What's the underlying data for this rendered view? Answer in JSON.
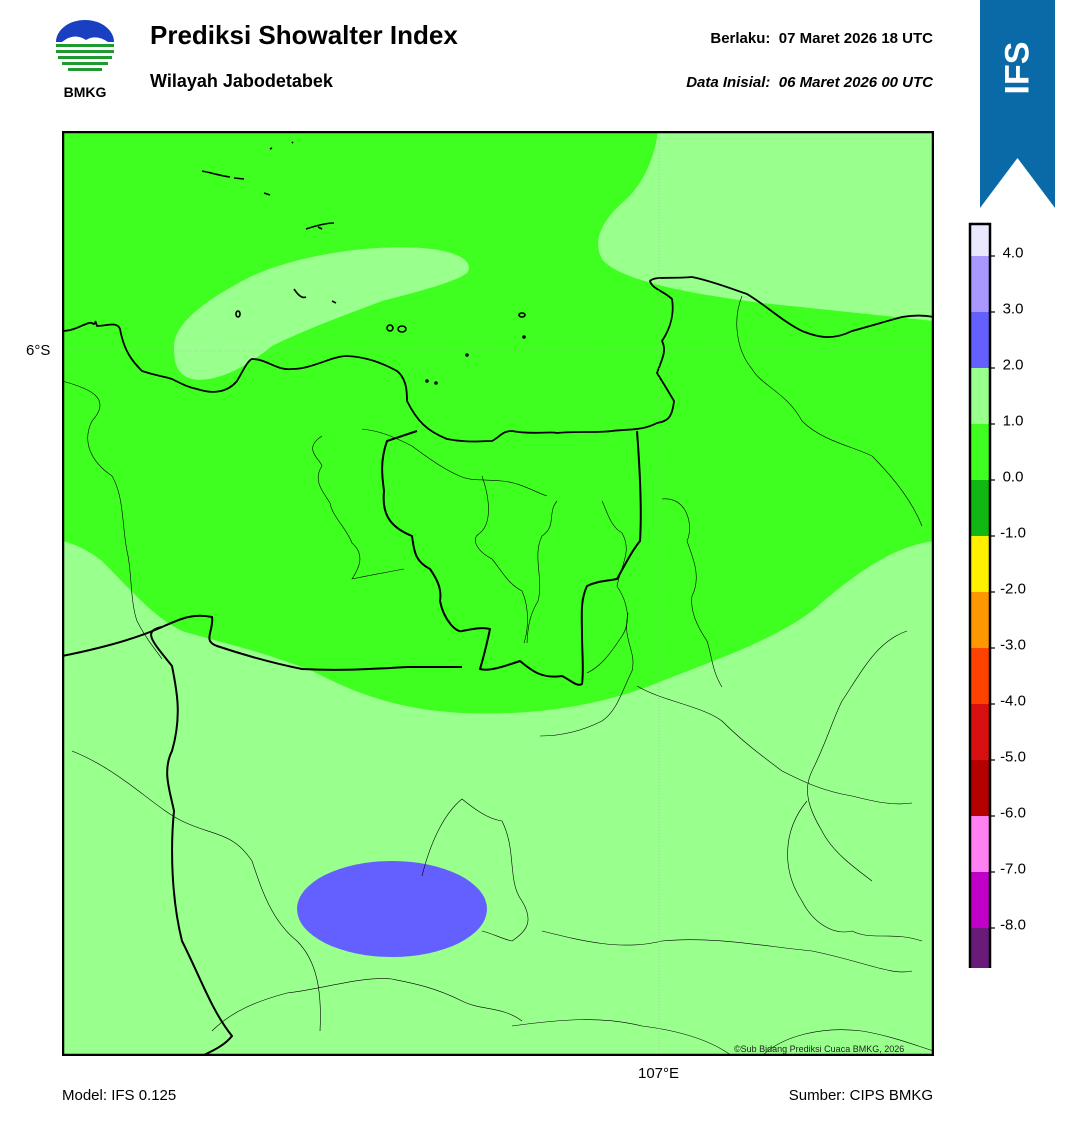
{
  "header": {
    "logo_text": "BMKG",
    "title": "Prediksi Showalter Index",
    "subtitle": "Wilayah Jabodetabek",
    "valid_label": "Berlaku:",
    "valid_time": "07 Maret 2026 18 UTC",
    "init_label": "Data Inisial:",
    "init_time": "06 Maret 2026 00 UTC",
    "ribbon_text": "IFS",
    "ribbon_color": "#0a6aa8"
  },
  "map": {
    "lat_label": "6°S",
    "lon_label": "107°E",
    "copyright": "©Sub Bidang Prediksi Cuaca BMKG, 2026",
    "colors": {
      "light_green": "#99ff8d",
      "bright_green": "#3fff20",
      "purple_blue": "#6460ff"
    }
  },
  "colorbar": {
    "levels": [
      {
        "label": "4.0",
        "color": "#e8e8ff"
      },
      {
        "label": "3.0",
        "color": "#a898ff"
      },
      {
        "label": "2.0",
        "color": "#6460ff"
      },
      {
        "label": "1.0",
        "color": "#99ff8d"
      },
      {
        "label": "0.0",
        "color": "#3fff20"
      },
      {
        "label": "-1.0",
        "color": "#11b811"
      },
      {
        "label": "-2.0",
        "color": "#ffef00"
      },
      {
        "label": "-3.0",
        "color": "#ff9800"
      },
      {
        "label": "-4.0",
        "color": "#ff4200"
      },
      {
        "label": "-5.0",
        "color": "#d81010"
      },
      {
        "label": "-6.0",
        "color": "#b40000"
      },
      {
        "label": "-7.0",
        "color": "#ff80f0"
      },
      {
        "label": "-8.0",
        "color": "#c000c8"
      },
      {
        "label": "",
        "color": "#6a1a78"
      }
    ]
  },
  "footer": {
    "model": "Model: IFS 0.125",
    "source": "Sumber: CIPS BMKG"
  }
}
